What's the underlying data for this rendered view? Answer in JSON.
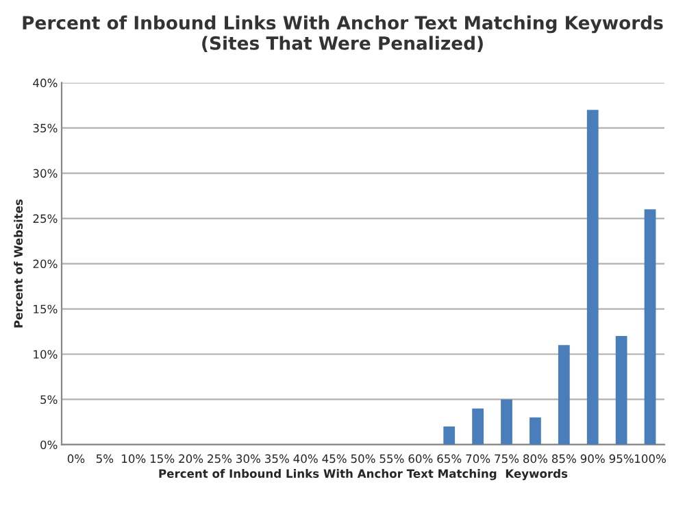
{
  "chart_data": {
    "type": "bar",
    "title": "Percent of Inbound Links With Anchor Text Matching Keywords\n(Sites That Were Penalized)",
    "xlabel": "Percent of Inbound Links With Anchor Text Matching  Keywords",
    "ylabel": "Percent of Websites",
    "categories": [
      "0%",
      "5%",
      "10%",
      "15%",
      "20%",
      "25%",
      "30%",
      "35%",
      "40%",
      "45%",
      "50%",
      "55%",
      "60%",
      "65%",
      "70%",
      "75%",
      "80%",
      "85%",
      "90%",
      "95%",
      "100%"
    ],
    "values": [
      0,
      0,
      0,
      0,
      0,
      0,
      0,
      0,
      0,
      0,
      0,
      0,
      0,
      2,
      4,
      5,
      3,
      11,
      37,
      12,
      26
    ],
    "color": "#4a7ebb",
    "ylim": [
      0,
      40
    ],
    "yticks": [
      {
        "value": 0,
        "label": "0%"
      },
      {
        "value": 5,
        "label": "5%"
      },
      {
        "value": 10,
        "label": "10%"
      },
      {
        "value": 15,
        "label": "15%"
      },
      {
        "value": 20,
        "label": "20%"
      },
      {
        "value": 25,
        "label": "25%"
      },
      {
        "value": 30,
        "label": "30%"
      },
      {
        "value": 35,
        "label": "35%"
      },
      {
        "value": 40,
        "label": "40%"
      }
    ],
    "grid": "y"
  }
}
